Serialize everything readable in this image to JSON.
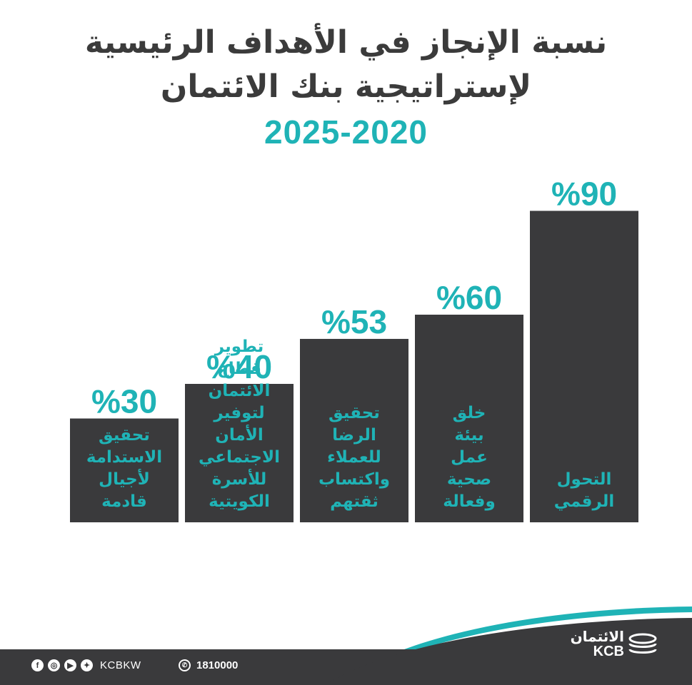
{
  "header": {
    "title_line1": "نسبة الإنجاز في الأهداف الرئيسية",
    "title_line2": "لإستراتيجية بنك الائتمان",
    "years": "2025-2020"
  },
  "chart_data": {
    "type": "bar",
    "categories": [
      "تحقيق الاستدامة لأجيال قادمة",
      "تطوير قطاع الائتمان لتوفير الأمان الاجتماعي للأسرة الكويتية",
      "تحقيق الرضا للعملاء واكتساب ثقتهم",
      "خلق بيئة عمل صحية وفعالة",
      "التحول الرقمي"
    ],
    "category_lines": [
      [
        "تحقيق",
        "الاستدامة",
        "لأجيال",
        "قادمة"
      ],
      [
        "تطوير",
        "قطاع",
        "الائتمان",
        "لتوفير",
        "الأمان",
        "الاجتماعي",
        "للأسرة",
        "الكويتية"
      ],
      [
        "تحقيق",
        "الرضا",
        "للعملاء",
        "واكتساب",
        "ثقتهم"
      ],
      [
        "خلق",
        "بيئة",
        "عمل",
        "صحية",
        "وفعالة"
      ],
      [
        "التحول",
        "الرقمي"
      ]
    ],
    "values": [
      30,
      40,
      53,
      60,
      90
    ],
    "value_labels": [
      "%30",
      "%40",
      "%53",
      "%60",
      "%90"
    ],
    "ylim": [
      0,
      100
    ],
    "bar_color": "#3a3a3c",
    "label_color": "#1fb3b6"
  },
  "footer": {
    "social_icons": [
      "facebook-icon",
      "instagram-icon",
      "youtube-icon",
      "twitter-icon"
    ],
    "handle": "KCBKW",
    "phone": "1810000",
    "logo_ar": "الائتمان",
    "logo_en": "KCB"
  },
  "colors": {
    "accent": "#1fb3b6",
    "dark": "#3a3a3c",
    "title": "#3b3b3b"
  }
}
